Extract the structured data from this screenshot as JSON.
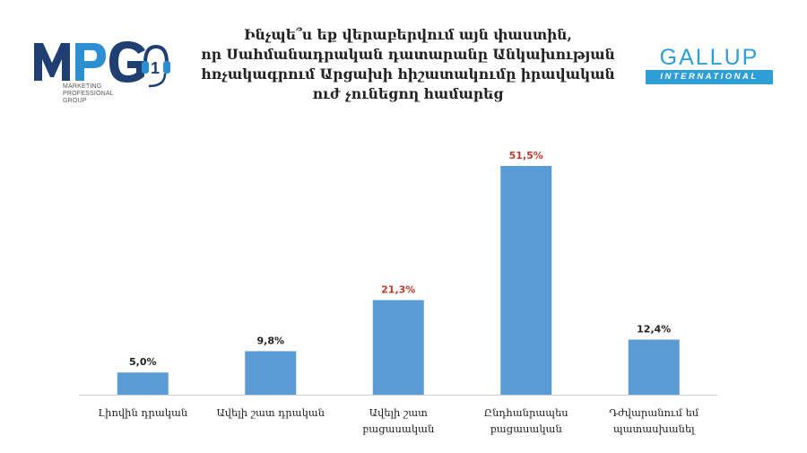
{
  "title_lines": [
    "Ինչպե՞ս եք վերաբերվում այն փաստին,",
    "որ Սահմանադրական դատարանը Անկախության",
    "հռչակագրում Արցախի հիշատակումը իրավական",
    "ուժ չունեցող համարեց"
  ],
  "logos": {
    "mpg": {
      "text": "MPG",
      "subtitle_lines": [
        "MARKETING",
        "PROFESSIONAL",
        "GROUP"
      ]
    },
    "gallup": {
      "name": "GALLUP",
      "tagline": "INTERNATIONAL"
    }
  },
  "colors": {
    "bar": "#5b9bd5",
    "highlight_label": "#c0392b",
    "normal_label": "#222222",
    "mpg_dark": "#1f3f73",
    "mpg_light": "#2b8fd1",
    "gallup": "#2e9fd6"
  },
  "chart_data": {
    "type": "bar",
    "categories": [
      [
        "Լիովին դրական"
      ],
      [
        "Ավելի շատ դրական"
      ],
      [
        "Ավելի շատ",
        "բացասական"
      ],
      [
        "Ընդհանրապես",
        "բացասական"
      ],
      [
        "Դժվարանում եմ",
        "պատասխանել"
      ]
    ],
    "values": [
      5.0,
      9.8,
      21.3,
      51.5,
      12.4
    ],
    "value_labels": [
      "5,0%",
      "9,8%",
      "21,3%",
      "51,5%",
      "12,4%"
    ],
    "highlighted": [
      false,
      false,
      true,
      true,
      false
    ],
    "ylim": [
      0,
      51.5
    ],
    "grid": false,
    "legend": "none"
  }
}
